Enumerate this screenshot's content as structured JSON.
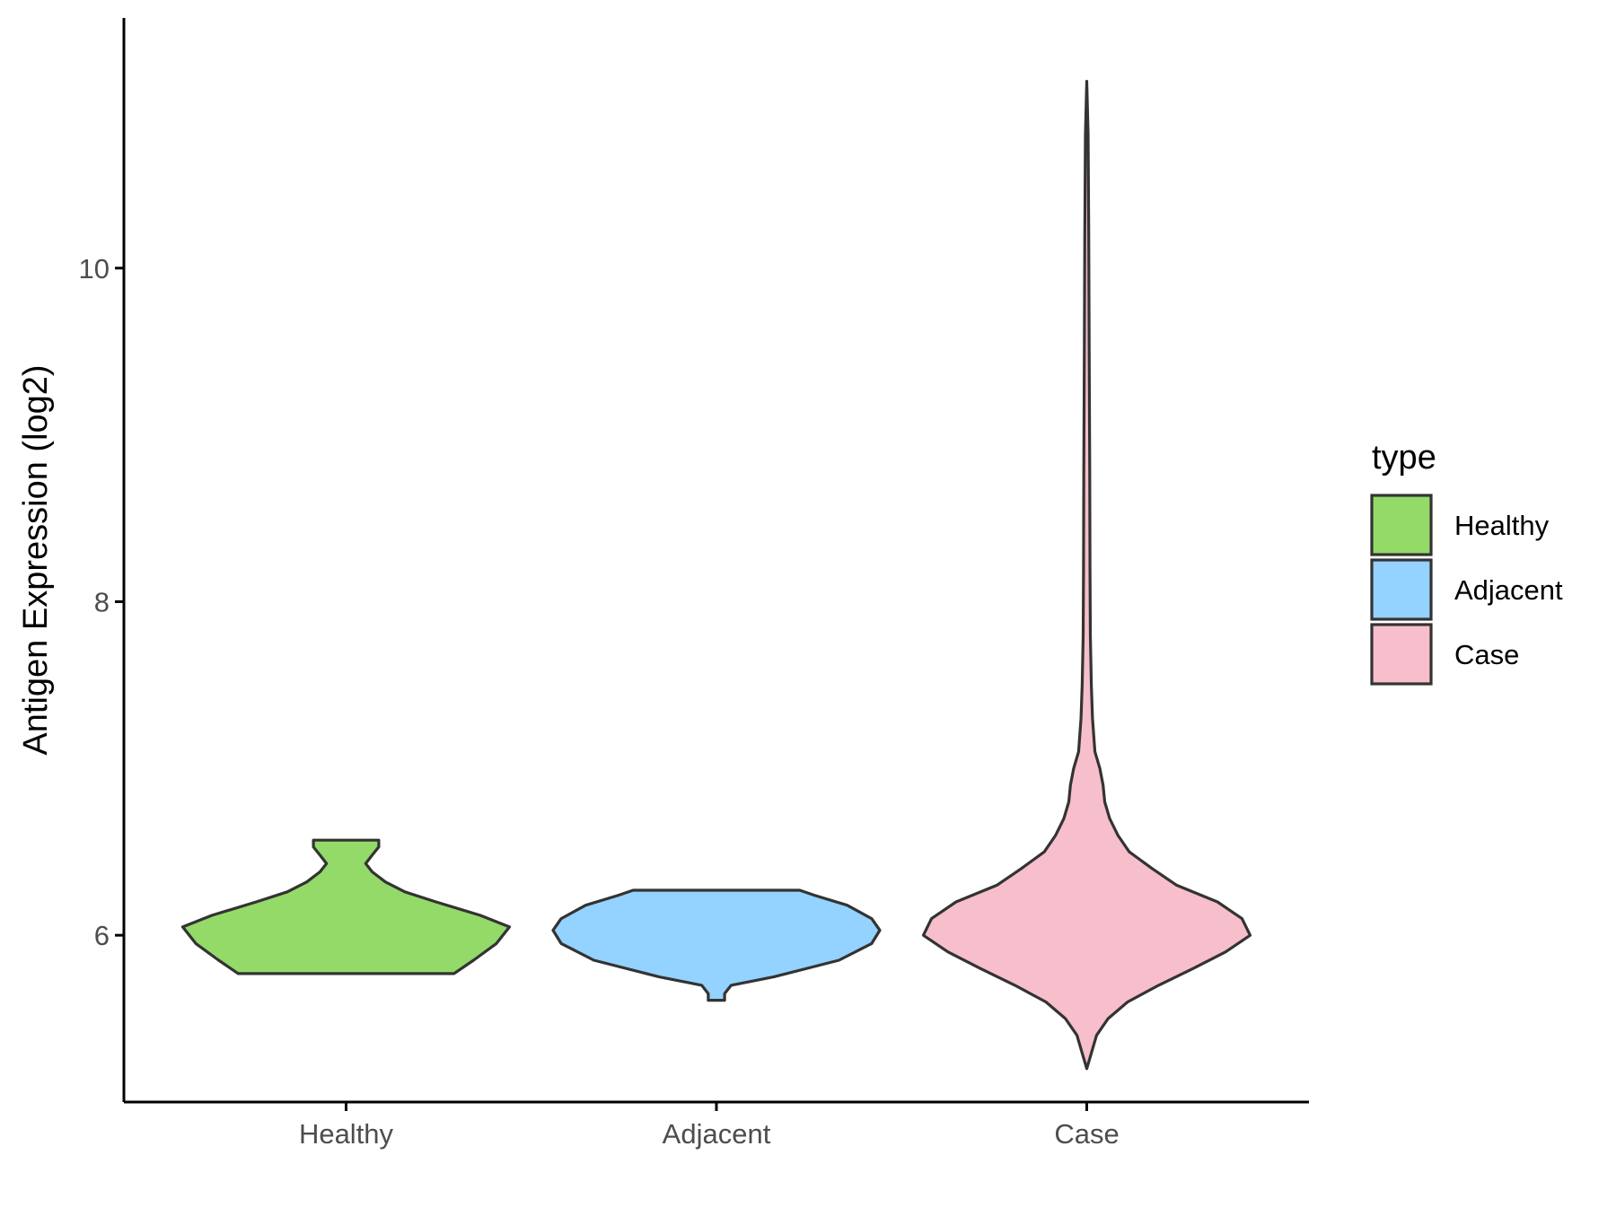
{
  "chart_data": {
    "type": "violin",
    "title": "",
    "xlabel": "",
    "ylabel": "Antigen Expression (log2)",
    "ylim": [
      5.0,
      11.5
    ],
    "y_ticks": [
      6,
      8,
      10
    ],
    "y_tick_labels": [
      "6",
      "8",
      "10"
    ],
    "grid": false,
    "categories": [
      "Healthy",
      "Adjacent",
      "Case"
    ],
    "legend": {
      "title": "type",
      "placement": "right",
      "entries": [
        "Healthy",
        "Adjacent",
        "Case"
      ]
    },
    "colors": {
      "Healthy": "#93DA69",
      "Adjacent": "#94D2FF",
      "Case": "#F7BFCB",
      "outline": "#333333"
    },
    "series": [
      {
        "name": "Healthy",
        "min": 5.77,
        "max": 6.57,
        "profile": [
          [
            5.77,
            0.66
          ],
          [
            5.85,
            0.78
          ],
          [
            5.95,
            0.92
          ],
          [
            6.05,
            1.0
          ],
          [
            6.12,
            0.82
          ],
          [
            6.2,
            0.55
          ],
          [
            6.26,
            0.36
          ],
          [
            6.32,
            0.24
          ],
          [
            6.38,
            0.16
          ],
          [
            6.43,
            0.12
          ],
          [
            6.48,
            0.16
          ],
          [
            6.53,
            0.2
          ],
          [
            6.57,
            0.2
          ]
        ]
      },
      {
        "name": "Adjacent",
        "min": 5.61,
        "max": 6.27,
        "profile": [
          [
            5.61,
            0.05
          ],
          [
            5.65,
            0.05
          ],
          [
            5.7,
            0.09
          ],
          [
            5.75,
            0.35
          ],
          [
            5.85,
            0.75
          ],
          [
            5.95,
            0.95
          ],
          [
            6.03,
            1.0
          ],
          [
            6.1,
            0.95
          ],
          [
            6.18,
            0.8
          ],
          [
            6.24,
            0.6
          ],
          [
            6.27,
            0.51
          ]
        ]
      },
      {
        "name": "Case",
        "min": 5.2,
        "max": 11.12,
        "profile": [
          [
            5.2,
            0.0
          ],
          [
            5.3,
            0.03
          ],
          [
            5.4,
            0.06
          ],
          [
            5.5,
            0.13
          ],
          [
            5.6,
            0.25
          ],
          [
            5.7,
            0.44
          ],
          [
            5.8,
            0.65
          ],
          [
            5.9,
            0.85
          ],
          [
            6.0,
            1.0
          ],
          [
            6.1,
            0.95
          ],
          [
            6.2,
            0.8
          ],
          [
            6.3,
            0.55
          ],
          [
            6.4,
            0.4
          ],
          [
            6.5,
            0.26
          ],
          [
            6.6,
            0.19
          ],
          [
            6.7,
            0.14
          ],
          [
            6.8,
            0.11
          ],
          [
            6.9,
            0.1
          ],
          [
            7.0,
            0.08
          ],
          [
            7.1,
            0.05
          ],
          [
            7.3,
            0.035
          ],
          [
            7.5,
            0.028
          ],
          [
            7.8,
            0.022
          ],
          [
            8.2,
            0.02
          ],
          [
            8.8,
            0.018
          ],
          [
            9.5,
            0.015
          ],
          [
            10.2,
            0.012
          ],
          [
            10.8,
            0.008
          ],
          [
            11.12,
            0.0
          ]
        ]
      }
    ]
  }
}
